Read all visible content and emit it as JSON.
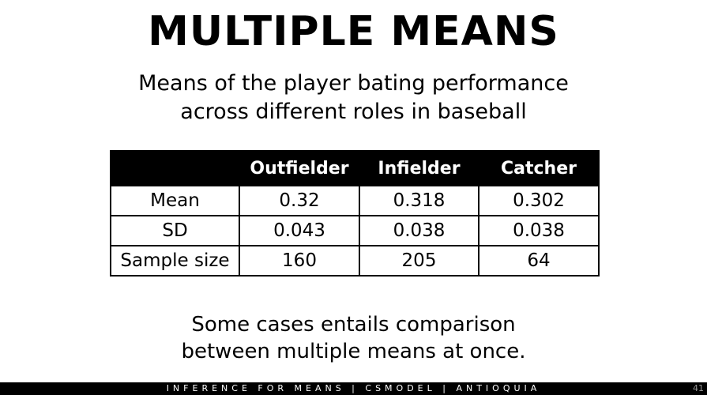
{
  "slide": {
    "title": "MULTIPLE MEANS",
    "subtitle_lines": [
      "Means of the player bating performance",
      "across different roles in baseball"
    ],
    "note_lines": [
      "Some cases entails comparison",
      "between multiple means at once."
    ]
  },
  "table": {
    "headers": [
      "",
      "Outfielder",
      "Infielder",
      "Catcher"
    ],
    "rows": [
      [
        "Mean",
        "0.32",
        "0.318",
        "0.302"
      ],
      [
        "SD",
        "0.043",
        "0.038",
        "0.038"
      ],
      [
        "Sample size",
        "160",
        "205",
        "64"
      ]
    ]
  },
  "footer": {
    "text": "INFERENCE FOR MEANS | CSMODEL | ANTIOQUIA",
    "page_number": "41"
  },
  "colors": {
    "header_background": "#000000",
    "header_text": "#ffffff",
    "footer_background": "#000000",
    "page_number": "#9a9a9a"
  }
}
